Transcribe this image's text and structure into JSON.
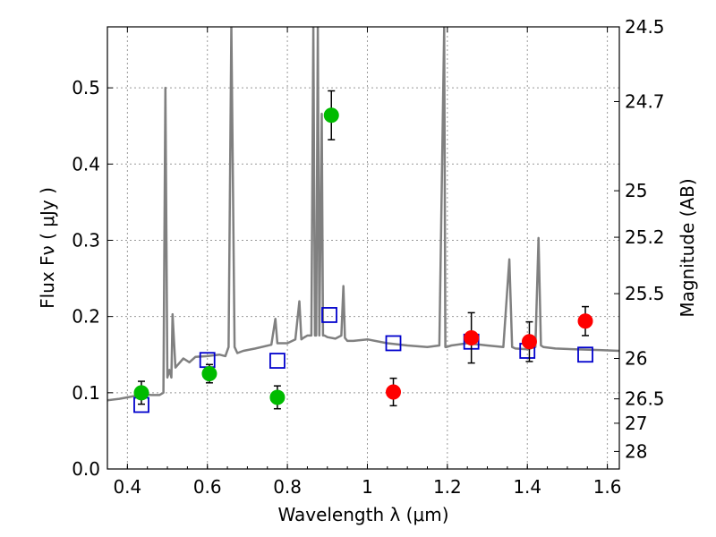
{
  "chart_data": {
    "type": "scatter",
    "xlabel": "Wavelength  λ (μm)",
    "ylabel": "Flux  Fν  ( μJy )",
    "ylabel_right": "Magnitude (AB)",
    "xlim": [
      0.35,
      1.63
    ],
    "ylim": [
      0.0,
      0.58
    ],
    "grid": true,
    "x_ticks": [
      0.4,
      0.6,
      0.8,
      1.0,
      1.2,
      1.4,
      1.6
    ],
    "x_tick_labels": [
      "0.4",
      "0.6",
      "0.8",
      "1",
      "1.2",
      "1.4",
      "1.6"
    ],
    "y_ticks": [
      0.0,
      0.1,
      0.2,
      0.3,
      0.4,
      0.5
    ],
    "y_tick_labels": [
      "0.0",
      "0.1",
      "0.2",
      "0.3",
      "0.4",
      "0.5"
    ],
    "right_ticks": [
      {
        "label": "24.5",
        "flux": 0.58
      },
      {
        "label": "24.7",
        "flux": 0.482
      },
      {
        "label": "25",
        "flux": 0.365
      },
      {
        "label": "25.2",
        "flux": 0.304
      },
      {
        "label": "25.5",
        "flux": 0.23
      },
      {
        "label": "26",
        "flux": 0.145
      },
      {
        "label": "26.5",
        "flux": 0.092
      },
      {
        "label": "27",
        "flux": 0.06
      },
      {
        "label": "28",
        "flux": 0.023
      }
    ],
    "colors": {
      "spectrum": "#808080",
      "green": "#00bb00",
      "red": "#ff0000",
      "blue": "#0000cc",
      "errorbar": "#000000",
      "grid": "#999999"
    },
    "series": [
      {
        "marker": "green-circle",
        "x": [
          0.435,
          0.605,
          0.775,
          0.91
        ],
        "y": [
          0.1,
          0.125,
          0.094,
          0.464
        ],
        "err": [
          0.015,
          0.012,
          0.015,
          0.032
        ]
      },
      {
        "marker": "red-circle",
        "x": [
          1.065,
          1.26,
          1.405,
          1.545
        ],
        "y": [
          0.101,
          0.172,
          0.167,
          0.194
        ],
        "err": [
          0.018,
          0.033,
          0.026,
          0.019
        ]
      },
      {
        "marker": "blue-square",
        "x": [
          0.435,
          0.6,
          0.775,
          0.905,
          1.065,
          1.26,
          1.4,
          1.545
        ],
        "y": [
          0.084,
          0.143,
          0.142,
          0.202,
          0.165,
          0.167,
          0.155,
          0.15
        ]
      }
    ],
    "spectrum": {
      "x": [
        0.35,
        0.38,
        0.41,
        0.44,
        0.46,
        0.48,
        0.49,
        0.495,
        0.5,
        0.505,
        0.51,
        0.513,
        0.52,
        0.54,
        0.555,
        0.57,
        0.6,
        0.63,
        0.645,
        0.653,
        0.66,
        0.668,
        0.675,
        0.69,
        0.72,
        0.76,
        0.77,
        0.775,
        0.785,
        0.8,
        0.82,
        0.83,
        0.835,
        0.84,
        0.85,
        0.86,
        0.865,
        0.869,
        0.872,
        0.876,
        0.88,
        0.886,
        0.889,
        0.893,
        0.9,
        0.92,
        0.935,
        0.94,
        0.944,
        0.95,
        0.965,
        1.0,
        1.05,
        1.1,
        1.15,
        1.18,
        1.192,
        1.195,
        1.198,
        1.21,
        1.25,
        1.3,
        1.34,
        1.355,
        1.362,
        1.37,
        1.4,
        1.42,
        1.428,
        1.434,
        1.44,
        1.47,
        1.52,
        1.58,
        1.63
      ],
      "y": [
        0.09,
        0.092,
        0.095,
        0.098,
        0.097,
        0.097,
        0.1,
        0.5,
        0.12,
        0.13,
        0.12,
        0.203,
        0.133,
        0.145,
        0.14,
        0.147,
        0.148,
        0.15,
        0.148,
        0.16,
        0.58,
        0.16,
        0.152,
        0.155,
        0.158,
        0.163,
        0.197,
        0.165,
        0.165,
        0.165,
        0.17,
        0.22,
        0.17,
        0.172,
        0.175,
        0.175,
        0.58,
        0.175,
        0.175,
        0.58,
        0.175,
        0.466,
        0.175,
        0.175,
        0.173,
        0.171,
        0.175,
        0.24,
        0.172,
        0.168,
        0.168,
        0.17,
        0.165,
        0.162,
        0.16,
        0.162,
        0.58,
        0.16,
        0.16,
        0.162,
        0.165,
        0.162,
        0.16,
        0.275,
        0.16,
        0.158,
        0.157,
        0.16,
        0.303,
        0.162,
        0.16,
        0.158,
        0.157,
        0.156,
        0.155
      ]
    }
  }
}
